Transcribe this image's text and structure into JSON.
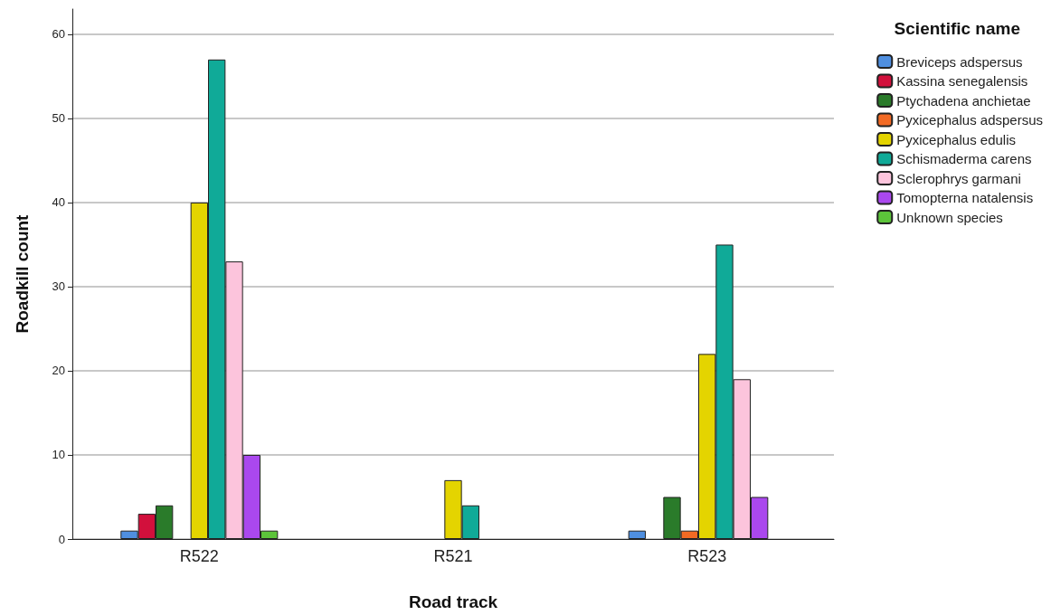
{
  "chart_data": {
    "type": "bar",
    "xlabel": "Road track",
    "ylabel": "Roadkill count",
    "legend_title": "Scientific name",
    "categories": [
      "R522",
      "R521",
      "R523"
    ],
    "series": [
      {
        "name": "Breviceps adspersus",
        "color": "#4f8fe0",
        "values": [
          1,
          null,
          1
        ]
      },
      {
        "name": "Kassina senegalensis",
        "color": "#d2103c",
        "values": [
          3,
          null,
          null
        ]
      },
      {
        "name": "Ptychadena anchietae",
        "color": "#2a7b2a",
        "values": [
          4,
          null,
          5
        ]
      },
      {
        "name": "Pyxicephalus adspersus",
        "color": "#f26a24",
        "values": [
          null,
          null,
          1
        ]
      },
      {
        "name": "Pyxicephalus edulis",
        "color": "#e4d400",
        "values": [
          40,
          7,
          22
        ]
      },
      {
        "name": "Schismaderma carens",
        "color": "#10aa98",
        "values": [
          57,
          4,
          35
        ]
      },
      {
        "name": "Sclerophrys garmani",
        "color": "#fcc4dc",
        "values": [
          33,
          null,
          19
        ]
      },
      {
        "name": "Tomopterna natalensis",
        "color": "#aa48ee",
        "values": [
          10,
          null,
          5
        ]
      },
      {
        "name": "Unknown species",
        "color": "#5cc43a",
        "values": [
          1,
          null,
          null
        ]
      }
    ],
    "ylim": [
      0,
      63
    ],
    "yticks": [
      0,
      10,
      20,
      30,
      40,
      50,
      60
    ],
    "grid": "y",
    "legend": "right"
  }
}
